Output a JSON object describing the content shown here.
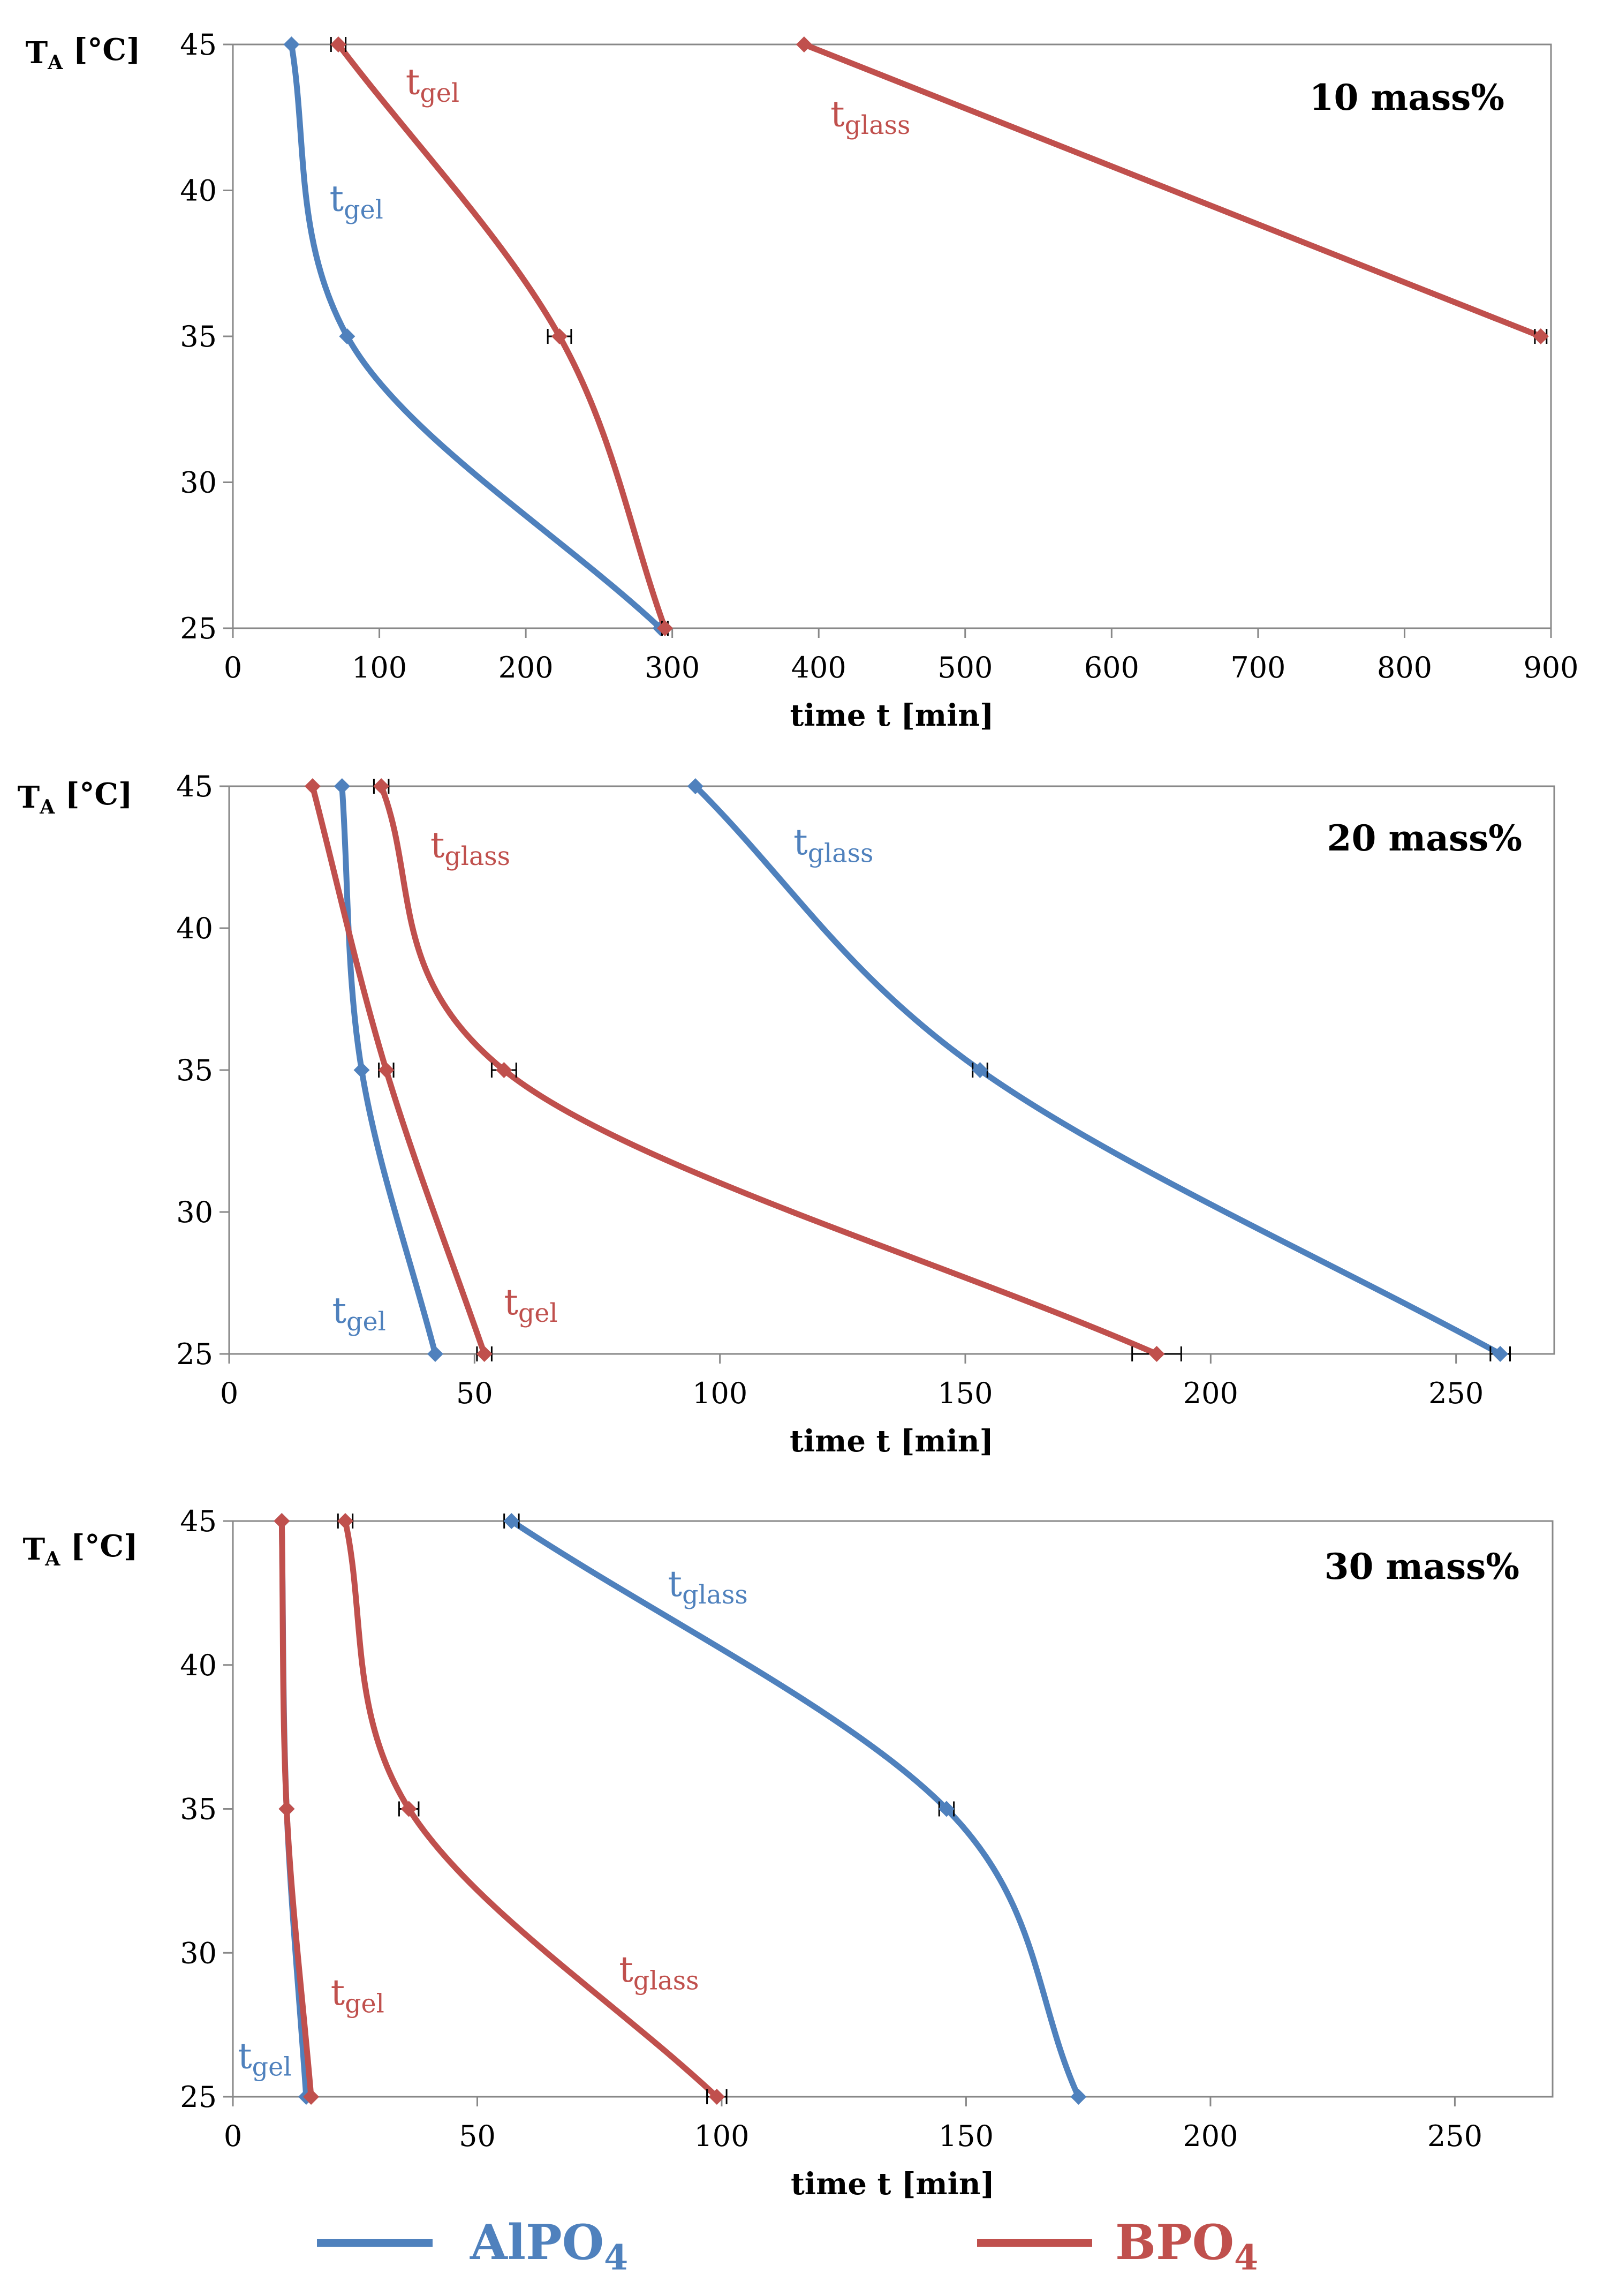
{
  "colors": {
    "AlPO4": "#4f81bd",
    "BPO4": "#c0504d"
  },
  "legend": [
    {
      "key": "AlPO4",
      "label": "AlPO",
      "sub": "4"
    },
    {
      "key": "BPO4",
      "label": "BPO",
      "sub": "4"
    }
  ],
  "chart_data": [
    {
      "type": "line",
      "title": "10 mass%",
      "xlabel": "time t [min]",
      "ylabel_main": "T",
      "ylabel_sub": "A",
      "ylabel_unit": " [°C]",
      "xlim": [
        0,
        900
      ],
      "ylim": [
        25,
        45
      ],
      "xticks": [
        0,
        100,
        200,
        300,
        400,
        500,
        600,
        700,
        800,
        900
      ],
      "yticks": [
        25,
        30,
        35,
        40,
        45
      ],
      "series": [
        {
          "material": "AlPO4",
          "quantity": "tgel",
          "points": [
            [
              40,
              45
            ],
            [
              78,
              35
            ],
            [
              292,
              25
            ]
          ]
        },
        {
          "material": "BPO4",
          "quantity": "tgel",
          "points": [
            [
              72,
              45
            ],
            [
              223,
              35
            ],
            [
              295,
              25
            ]
          ],
          "error_x": [
            5,
            8,
            2
          ]
        },
        {
          "material": "BPO4",
          "quantity": "tglass",
          "points": [
            [
              390,
              45
            ],
            [
              893,
              35
            ]
          ],
          "error_x": [
            0,
            4
          ]
        }
      ],
      "annotations": [
        {
          "main": "t",
          "sub": "gel",
          "color": "BPO4",
          "x": 118,
          "y": 43.3
        },
        {
          "main": "t",
          "sub": "glass",
          "color": "BPO4",
          "x": 408,
          "y": 42.2
        },
        {
          "main": "t",
          "sub": "gel",
          "color": "AlPO4",
          "x": 66,
          "y": 39.3
        }
      ]
    },
    {
      "type": "line",
      "title": "20 mass%",
      "xlabel": "time t [min]",
      "ylabel_main": "T",
      "ylabel_sub": "A",
      "ylabel_unit": " [°C]",
      "xlim": [
        0,
        270
      ],
      "ylim": [
        25,
        45
      ],
      "xticks": [
        0,
        50,
        100,
        150,
        200,
        250
      ],
      "yticks": [
        25,
        30,
        35,
        40,
        45
      ],
      "series": [
        {
          "material": "AlPO4",
          "quantity": "tgel",
          "points": [
            [
              23,
              45
            ],
            [
              27,
              35
            ],
            [
              42,
              25
            ]
          ]
        },
        {
          "material": "BPO4",
          "quantity": "tgel",
          "points": [
            [
              17,
              45
            ],
            [
              32,
              35
            ],
            [
              52,
              25
            ]
          ],
          "error_x": [
            0,
            1.5,
            1.5
          ]
        },
        {
          "material": "BPO4",
          "quantity": "tglass",
          "points": [
            [
              31,
              45
            ],
            [
              56,
              35
            ],
            [
              189,
              25
            ]
          ],
          "error_x": [
            1.5,
            2.5,
            5
          ]
        },
        {
          "material": "AlPO4",
          "quantity": "tglass",
          "points": [
            [
              95,
              45
            ],
            [
              153,
              35
            ],
            [
              259,
              25
            ]
          ],
          "error_x": [
            0,
            1.5,
            2
          ]
        }
      ],
      "annotations": [
        {
          "main": "t",
          "sub": "glass",
          "color": "BPO4",
          "x": 41,
          "y": 42.5
        },
        {
          "main": "t",
          "sub": "glass",
          "color": "AlPO4",
          "x": 115,
          "y": 42.6
        },
        {
          "main": "t",
          "sub": "gel",
          "color": "AlPO4",
          "x": 21,
          "y": 26.1
        },
        {
          "main": "t",
          "sub": "gel",
          "color": "BPO4",
          "x": 56,
          "y": 26.4
        }
      ]
    },
    {
      "type": "line",
      "title": "30 mass%",
      "xlabel": "time t [min]",
      "ylabel_main": "T",
      "ylabel_sub": "A",
      "ylabel_unit": " [°C]",
      "xlim": [
        0,
        270
      ],
      "ylim": [
        25,
        45
      ],
      "xticks": [
        0,
        50,
        100,
        150,
        200,
        250
      ],
      "yticks": [
        25,
        30,
        35,
        40,
        45
      ],
      "series": [
        {
          "material": "AlPO4",
          "quantity": "tgel",
          "points": [
            [
              10,
              45
            ],
            [
              11,
              35
            ],
            [
              15,
              25
            ]
          ]
        },
        {
          "material": "BPO4",
          "quantity": "tgel",
          "points": [
            [
              10,
              45
            ],
            [
              11,
              35
            ],
            [
              16,
              25
            ]
          ]
        },
        {
          "material": "BPO4",
          "quantity": "tglass",
          "points": [
            [
              23,
              45
            ],
            [
              36,
              35
            ],
            [
              99,
              25
            ]
          ],
          "error_x": [
            1.5,
            2,
            2
          ]
        },
        {
          "material": "AlPO4",
          "quantity": "tglass",
          "points": [
            [
              57,
              45
            ],
            [
              146,
              35
            ],
            [
              173,
              25
            ]
          ],
          "error_x": [
            1.5,
            1.5,
            0
          ]
        }
      ],
      "annotations": [
        {
          "main": "t",
          "sub": "glass",
          "color": "AlPO4",
          "x": 89,
          "y": 42.4
        },
        {
          "main": "t",
          "sub": "gel",
          "color": "BPO4",
          "x": 20,
          "y": 28.2
        },
        {
          "main": "t",
          "sub": "glass",
          "color": "BPO4",
          "x": 79,
          "y": 29.0
        },
        {
          "main": "t",
          "sub": "gel",
          "color": "AlPO4",
          "x": 1,
          "y": 26.0
        }
      ]
    }
  ]
}
